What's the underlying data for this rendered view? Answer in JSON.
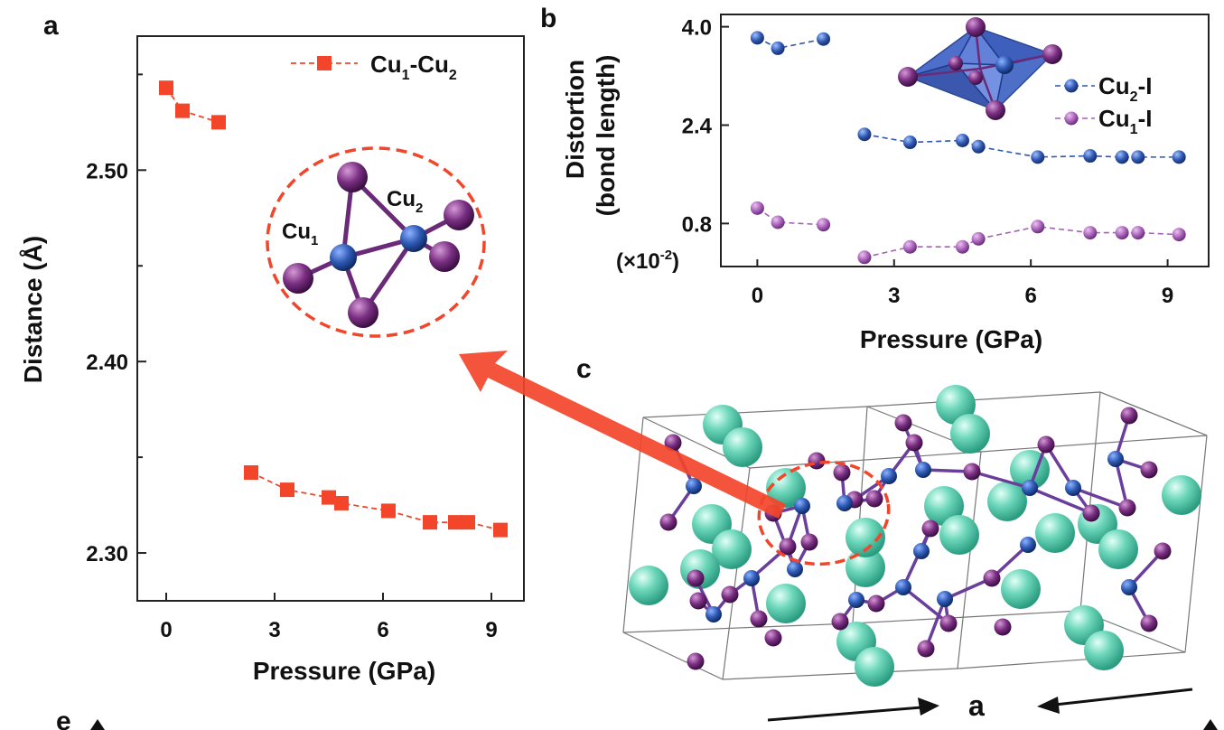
{
  "panels": {
    "a": "a",
    "b": "b",
    "c": "c",
    "e": "e"
  },
  "axis_arrow_label": "a",
  "chart_data": [
    {
      "id": "a",
      "type": "scatter",
      "title": "",
      "xlabel": "Pressure (GPa)",
      "ylabel": "Distance (Å)",
      "xlim": [
        -0.8,
        9.9
      ],
      "ylim": [
        2.275,
        2.57
      ],
      "xticks": [
        0,
        3,
        6,
        9
      ],
      "xtick_labels": [
        "0",
        "3",
        "6",
        "9"
      ],
      "yticks": [
        2.3,
        2.4,
        2.5
      ],
      "ytick_labels": [
        "2.30",
        "2.40",
        "2.50"
      ],
      "yminor": [
        2.35,
        2.45,
        2.55
      ],
      "grid": false,
      "legend_position": "top-right",
      "series": [
        {
          "name": "Cu1-Cu2",
          "legend": {
            "main": "Cu",
            "sub1": "1",
            "mid": "-Cu",
            "sub2": "2"
          },
          "color": "#f2452a",
          "marker": "square",
          "segments": [
            {
              "x": [
                0,
                0.45,
                1.45
              ],
              "y": [
                2.543,
                2.531,
                2.525
              ]
            },
            {
              "x": [
                2.35,
                3.35,
                4.5,
                4.85,
                6.15,
                7.3,
                8.0,
                8.35,
                9.25
              ],
              "y": [
                2.342,
                2.333,
                2.329,
                2.326,
                2.322,
                2.316,
                2.316,
                2.316,
                2.312
              ]
            }
          ]
        }
      ],
      "inset_labels": {
        "cu1": "Cu",
        "cu1_sub": "1",
        "cu2": "Cu",
        "cu2_sub": "2"
      }
    },
    {
      "id": "b",
      "type": "scatter",
      "title": "",
      "xlabel": "Pressure (GPa)",
      "ylabel_lines": [
        "Distortion",
        "(bond length)"
      ],
      "yunit": {
        "main": "(×10",
        "sup": "-2",
        "end": ")"
      },
      "xlim": [
        -0.8,
        9.9
      ],
      "ylim": [
        0.1,
        4.2
      ],
      "xticks": [
        0,
        3,
        6,
        9
      ],
      "xtick_labels": [
        "0",
        "3",
        "6",
        "9"
      ],
      "yticks": [
        0.8,
        2.4,
        4.0
      ],
      "ytick_labels": [
        "0.8",
        "2.4",
        "4.0"
      ],
      "grid": false,
      "legend_position": "top-right",
      "series": [
        {
          "name": "Cu2-I",
          "legend": {
            "main": "Cu",
            "sub": "2",
            "end": "-I"
          },
          "color": "#2f56b0",
          "marker": "circle",
          "segments": [
            {
              "x": [
                0,
                0.45,
                1.45
              ],
              "y": [
                3.82,
                3.65,
                3.8
              ]
            },
            {
              "x": [
                2.35,
                3.35,
                4.5,
                4.85,
                6.15,
                7.3,
                8.0,
                8.35,
                9.25
              ],
              "y": [
                2.25,
                2.12,
                2.15,
                2.05,
                1.88,
                1.9,
                1.88,
                1.88,
                1.88
              ]
            }
          ]
        },
        {
          "name": "Cu1-I",
          "legend": {
            "main": "Cu",
            "sub": "1",
            "end": "-I"
          },
          "color": "#a760b8",
          "marker": "circle",
          "segments": [
            {
              "x": [
                0,
                0.45,
                1.45
              ],
              "y": [
                1.05,
                0.82,
                0.78
              ]
            },
            {
              "x": [
                2.35,
                3.35,
                4.5,
                4.85,
                6.15,
                7.3,
                8.0,
                8.35,
                9.25
              ],
              "y": [
                0.25,
                0.42,
                0.42,
                0.55,
                0.75,
                0.65,
                0.65,
                0.65,
                0.62
              ]
            }
          ]
        }
      ]
    }
  ],
  "colors": {
    "cu": "#2f5bb5",
    "iodine": "#7a2f82",
    "other_atom": "#54c9a8",
    "highlight": "#f2452a",
    "cell_line": "#777777"
  }
}
